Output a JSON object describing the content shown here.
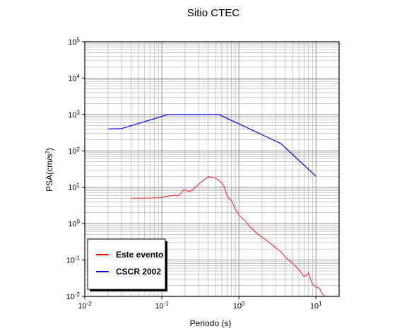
{
  "chart_data": {
    "type": "line",
    "title": "Sitio CTEC",
    "xlabel": "Periodo (s)",
    "ylabel": "PSA(cm/s²)",
    "x_scale": "log",
    "y_scale": "log",
    "xlim": [
      0.01,
      20
    ],
    "ylim": [
      0.01,
      100000
    ],
    "grid": true,
    "legend_position": "bottom-left",
    "x_ticks": [
      {
        "base": "10",
        "exp": "-2",
        "value": 0.01
      },
      {
        "base": "10",
        "exp": "-1",
        "value": 0.1
      },
      {
        "base": "10",
        "exp": "0",
        "value": 1
      },
      {
        "base": "10",
        "exp": "1",
        "value": 10
      }
    ],
    "y_ticks": [
      {
        "base": "10",
        "exp": "-2",
        "value": 0.01
      },
      {
        "base": "10",
        "exp": "-1",
        "value": 0.1
      },
      {
        "base": "10",
        "exp": "0",
        "value": 1
      },
      {
        "base": "10",
        "exp": "1",
        "value": 10
      },
      {
        "base": "10",
        "exp": "2",
        "value": 100
      },
      {
        "base": "10",
        "exp": "3",
        "value": 1000
      },
      {
        "base": "10",
        "exp": "4",
        "value": 10000
      },
      {
        "base": "10",
        "exp": "5",
        "value": 100000
      }
    ],
    "series": [
      {
        "name": "Este evento",
        "color": "#ff0000",
        "points": [
          [
            0.04,
            5.0
          ],
          [
            0.06,
            5.0
          ],
          [
            0.08,
            5.1
          ],
          [
            0.1,
            5.2
          ],
          [
            0.11,
            5.6
          ],
          [
            0.13,
            5.8
          ],
          [
            0.15,
            6.0
          ],
          [
            0.16,
            5.8
          ],
          [
            0.18,
            7.0
          ],
          [
            0.19,
            8.5
          ],
          [
            0.21,
            8.0
          ],
          [
            0.23,
            7.6
          ],
          [
            0.25,
            8.6
          ],
          [
            0.28,
            10.5
          ],
          [
            0.32,
            13.5
          ],
          [
            0.36,
            16.5
          ],
          [
            0.4,
            19.5
          ],
          [
            0.45,
            18.5
          ],
          [
            0.5,
            18.0
          ],
          [
            0.55,
            15.5
          ],
          [
            0.6,
            13.0
          ],
          [
            0.65,
            10.0
          ],
          [
            0.7,
            6.0
          ],
          [
            0.75,
            4.8
          ],
          [
            0.8,
            4.4
          ],
          [
            0.85,
            3.3
          ],
          [
            0.9,
            2.5
          ],
          [
            1.0,
            1.7
          ],
          [
            1.2,
            1.2
          ],
          [
            1.4,
            0.8
          ],
          [
            1.7,
            0.55
          ],
          [
            2.0,
            0.42
          ],
          [
            2.5,
            0.3
          ],
          [
            3.0,
            0.22
          ],
          [
            3.5,
            0.17
          ],
          [
            4.0,
            0.12
          ],
          [
            5.0,
            0.08
          ],
          [
            6.0,
            0.055
          ],
          [
            7.0,
            0.035
          ],
          [
            7.5,
            0.038
          ],
          [
            8.0,
            0.044
          ],
          [
            8.5,
            0.03
          ],
          [
            9.0,
            0.022
          ],
          [
            10.0,
            0.018
          ],
          [
            11.0,
            0.017
          ],
          [
            12.0,
            0.012
          ],
          [
            13.0,
            0.01
          ]
        ]
      },
      {
        "name": "CSCR 2002",
        "color": "#0000ff",
        "points": [
          [
            0.02,
            400
          ],
          [
            0.03,
            410
          ],
          [
            0.12,
            1000
          ],
          [
            0.55,
            1000
          ],
          [
            3.5,
            160
          ],
          [
            10.0,
            20
          ]
        ]
      }
    ]
  }
}
